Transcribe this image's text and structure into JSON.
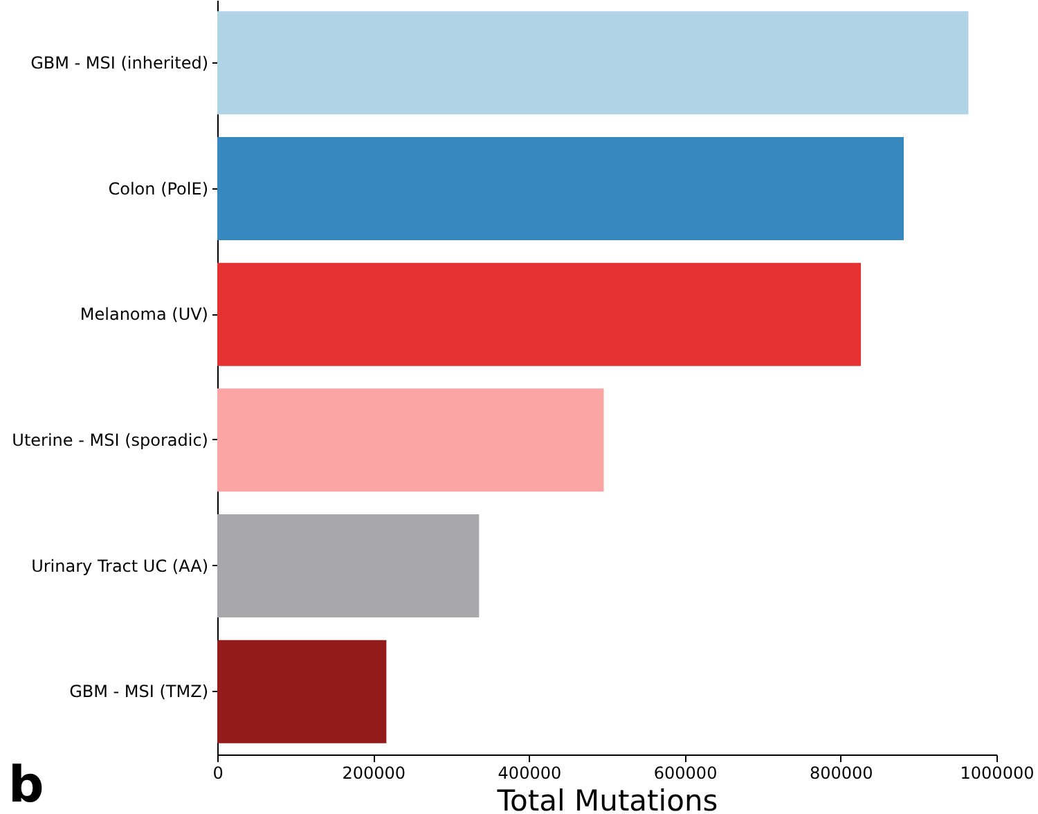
{
  "chart_data": {
    "type": "bar",
    "orientation": "horizontal",
    "xlabel": "Total Mutations",
    "categories": [
      "GBM - MSI (inherited)",
      "Colon (PolE)",
      "Melanoma (UV)",
      "Uterine - MSI (sporadic)",
      "Urinary Tract UC (AA)",
      "GBM - MSI (TMZ)"
    ],
    "values": [
      964000,
      881000,
      826000,
      496000,
      336000,
      217000
    ],
    "colors": [
      "#b0d3e5",
      "#3787c0",
      "#e63133",
      "#fca5a5",
      "#a8a7ac",
      "#931b1b"
    ],
    "xlim": [
      0,
      1000000
    ],
    "xticks": [
      0,
      200000,
      400000,
      600000,
      800000,
      1000000
    ],
    "grid": false,
    "annotations": [
      "b"
    ]
  }
}
